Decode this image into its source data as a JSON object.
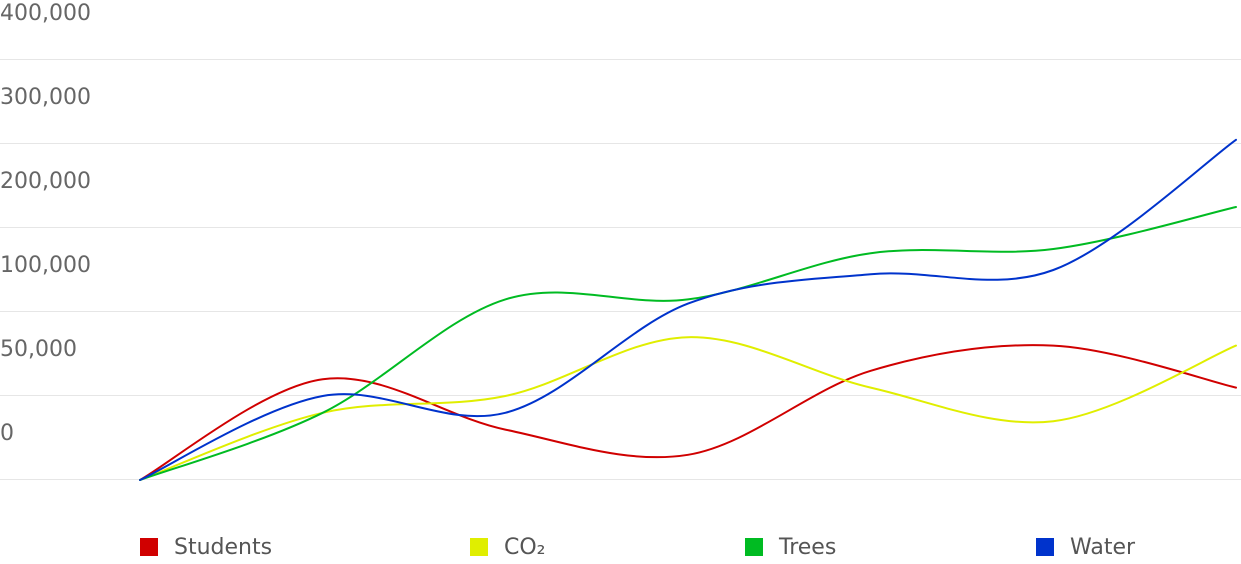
{
  "chart_data": {
    "type": "line",
    "title": "",
    "xlabel": "",
    "ylabel": "",
    "x": [
      0,
      1,
      2,
      3,
      4,
      5,
      6
    ],
    "ylim": [
      0,
      400000
    ],
    "y_ticks": [
      {
        "value": 0,
        "label": "0"
      },
      {
        "value": 50000,
        "label": "50,000"
      },
      {
        "value": 100000,
        "label": "100,000"
      },
      {
        "value": 200000,
        "label": "200,000"
      },
      {
        "value": 300000,
        "label": "300,000"
      },
      {
        "value": 400000,
        "label": "400,000"
      }
    ],
    "grid": true,
    "legend_position": "bottom",
    "series": [
      {
        "name": "Students",
        "color": "#d00000",
        "values": [
          0,
          60000,
          30000,
          15000,
          65000,
          80000,
          55000
        ]
      },
      {
        "name": "CO₂",
        "color": "#e0ee00",
        "values": [
          0,
          40000,
          50000,
          85000,
          55000,
          35000,
          80000
        ]
      },
      {
        "name": "Trees",
        "color": "#00bb22",
        "values": [
          0,
          40000,
          115000,
          115000,
          170000,
          175000,
          225000
        ]
      },
      {
        "name": "Water",
        "color": "#0033cc",
        "values": [
          0,
          50000,
          40000,
          110000,
          145000,
          150000,
          305000
        ]
      }
    ]
  }
}
